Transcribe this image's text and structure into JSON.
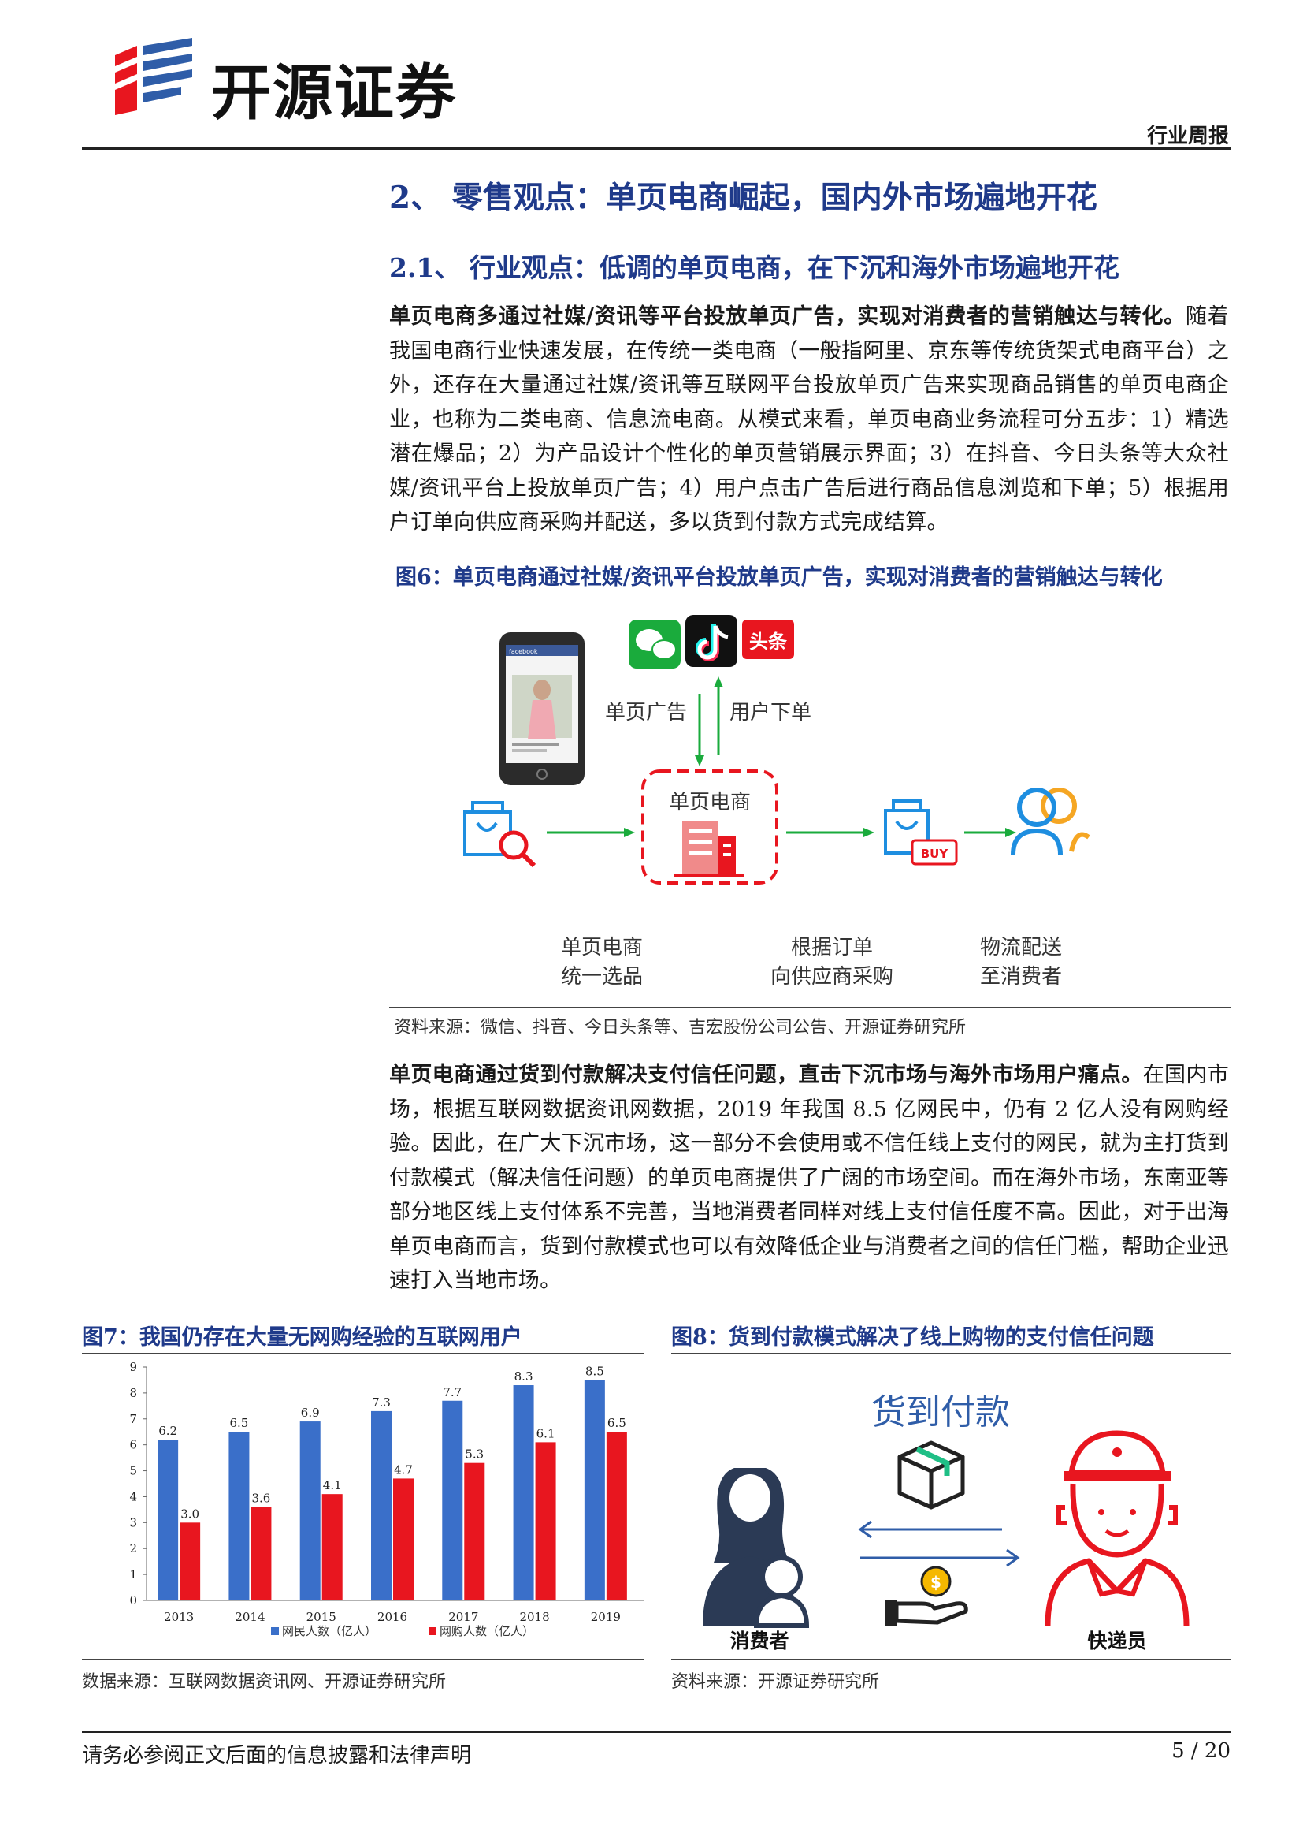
{
  "header": {
    "brand": "开源证券",
    "report_type": "行业周报"
  },
  "section": {
    "h2": "2、 零售观点：单页电商崛起，国内外市场遍地开花",
    "h3": "2.1、 行业观点：低调的单页电商，在下沉和海外市场遍地开花"
  },
  "paragraph1": {
    "lead": "单页电商多通过社媒/资讯等平台投放单页广告，实现对消费者的营销触达与转化。",
    "body": "随着我国电商行业快速发展，在传统一类电商（一般指阿里、京东等传统货架式电商平台）之外，还存在大量通过社媒/资讯等互联网平台投放单页广告来实现商品销售的单页电商企业，也称为二类电商、信息流电商。从模式来看，单页电商业务流程可分五步：1）精选潜在爆品；2）为产品设计个性化的单页营销展示界面；3）在抖音、今日头条等大众社媒/资讯平台上投放单页广告；4）用户点击广告后进行商品信息浏览和下单；5）根据用户订单向供应商采购并配送，多以货到付款方式完成结算。"
  },
  "figure6": {
    "caption": "图6：单页电商通过社媒/资讯平台投放单页广告，实现对消费者的营销触达与转化",
    "label_ad": "单页广告",
    "label_order": "用户下单",
    "center_label": "单页电商",
    "toutiao": "头条",
    "buy": "BUY",
    "step1_l1": "单页电商",
    "step1_l2": "统一选品",
    "step2_l1": "根据订单",
    "step2_l2": "向供应商采购",
    "step3_l1": "物流配送",
    "step3_l2": "至消费者",
    "phone_brand": "facebook",
    "source": "资料来源：微信、抖音、今日头条等、吉宏股份公司公告、开源证券研究所"
  },
  "paragraph2": {
    "lead": "单页电商通过货到付款解决支付信任问题，直击下沉市场与海外市场用户痛点。",
    "body": "在国内市场，根据互联网数据资讯网数据，2019 年我国 8.5 亿网民中，仍有 2 亿人没有网购经验。因此，在广大下沉市场，这一部分不会使用或不信任线上支付的网民，就为主打货到付款模式（解决信任问题）的单页电商提供了广阔的市场空间。而在海外市场，东南亚等部分地区线上支付体系不完善，当地消费者同样对线上支付信任度不高。因此，对于出海单页电商而言，货到付款模式也可以有效降低企业与消费者之间的信任门槛，帮助企业迅速打入当地市场。"
  },
  "figure7": {
    "caption": "图7：我国仍存在大量无网购经验的互联网用户",
    "source": "数据来源：互联网数据资讯网、开源证券研究所"
  },
  "chart_data": {
    "type": "bar",
    "categories": [
      "2013",
      "2014",
      "2015",
      "2016",
      "2017",
      "2018",
      "2019"
    ],
    "series": [
      {
        "name": "网民人数（亿人）",
        "values": [
          6.2,
          6.5,
          6.9,
          7.3,
          7.7,
          8.3,
          8.5
        ],
        "color": "#3a6fc9"
      },
      {
        "name": "网购人数（亿人）",
        "values": [
          3.0,
          3.6,
          4.1,
          4.7,
          5.3,
          6.1,
          6.5
        ],
        "color": "#e8161f"
      }
    ],
    "yticks": [
      "0",
      "1",
      "2",
      "3",
      "4",
      "5",
      "6",
      "7",
      "8",
      "9"
    ],
    "ylim": [
      0,
      9
    ],
    "value_labels": [
      [
        "6.2",
        "6.5",
        "6.9",
        "7.3",
        "7.7",
        "8.3",
        "8.5"
      ],
      [
        "3.0",
        "3.6",
        "4.1",
        "4.7",
        "5.3",
        "6.1",
        "6.5"
      ]
    ],
    "legend_position": "bottom",
    "grid": false
  },
  "figure8": {
    "caption": "图8：货到付款模式解决了线上购物的支付信任问题",
    "title": "货到付款",
    "left_label": "消费者",
    "right_label": "快递员",
    "source": "资料来源：开源证券研究所"
  },
  "footer": {
    "disclaimer": "请务必参阅正文后面的信息披露和法律声明",
    "page": "5 / 20"
  },
  "colors": {
    "heading_blue": "#1f3a8a",
    "red": "#e8161f",
    "green": "#1aab3c",
    "icon_blue": "#1e8ee0",
    "orange": "#f5a623"
  }
}
